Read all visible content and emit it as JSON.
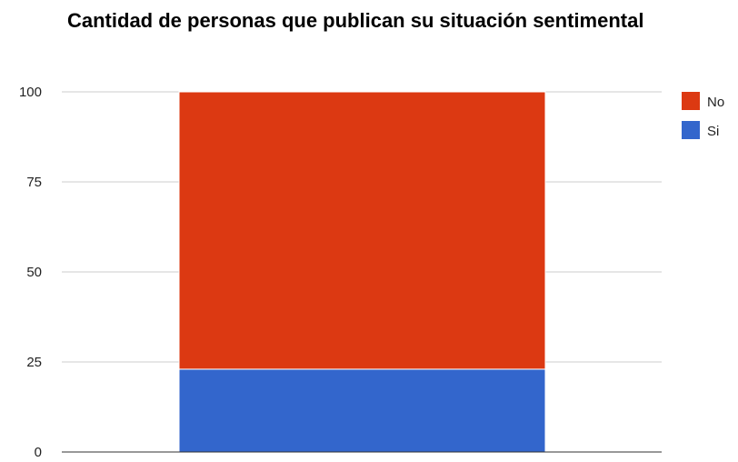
{
  "chart_data": {
    "type": "bar",
    "stacked": true,
    "title": "Cantidad de personas que publican su situación sentimental",
    "xlabel": "",
    "ylabel": "",
    "categories": [
      ""
    ],
    "series": [
      {
        "name": "Si",
        "values": [
          23
        ],
        "color": "#3366cc"
      },
      {
        "name": "No",
        "values": [
          77
        ],
        "color": "#dc3912"
      }
    ],
    "ylim": [
      0,
      100
    ],
    "yticks": [
      0,
      25,
      50,
      75,
      100
    ],
    "grid": true,
    "legend": {
      "position": "right",
      "order": [
        "No",
        "Si"
      ]
    }
  }
}
